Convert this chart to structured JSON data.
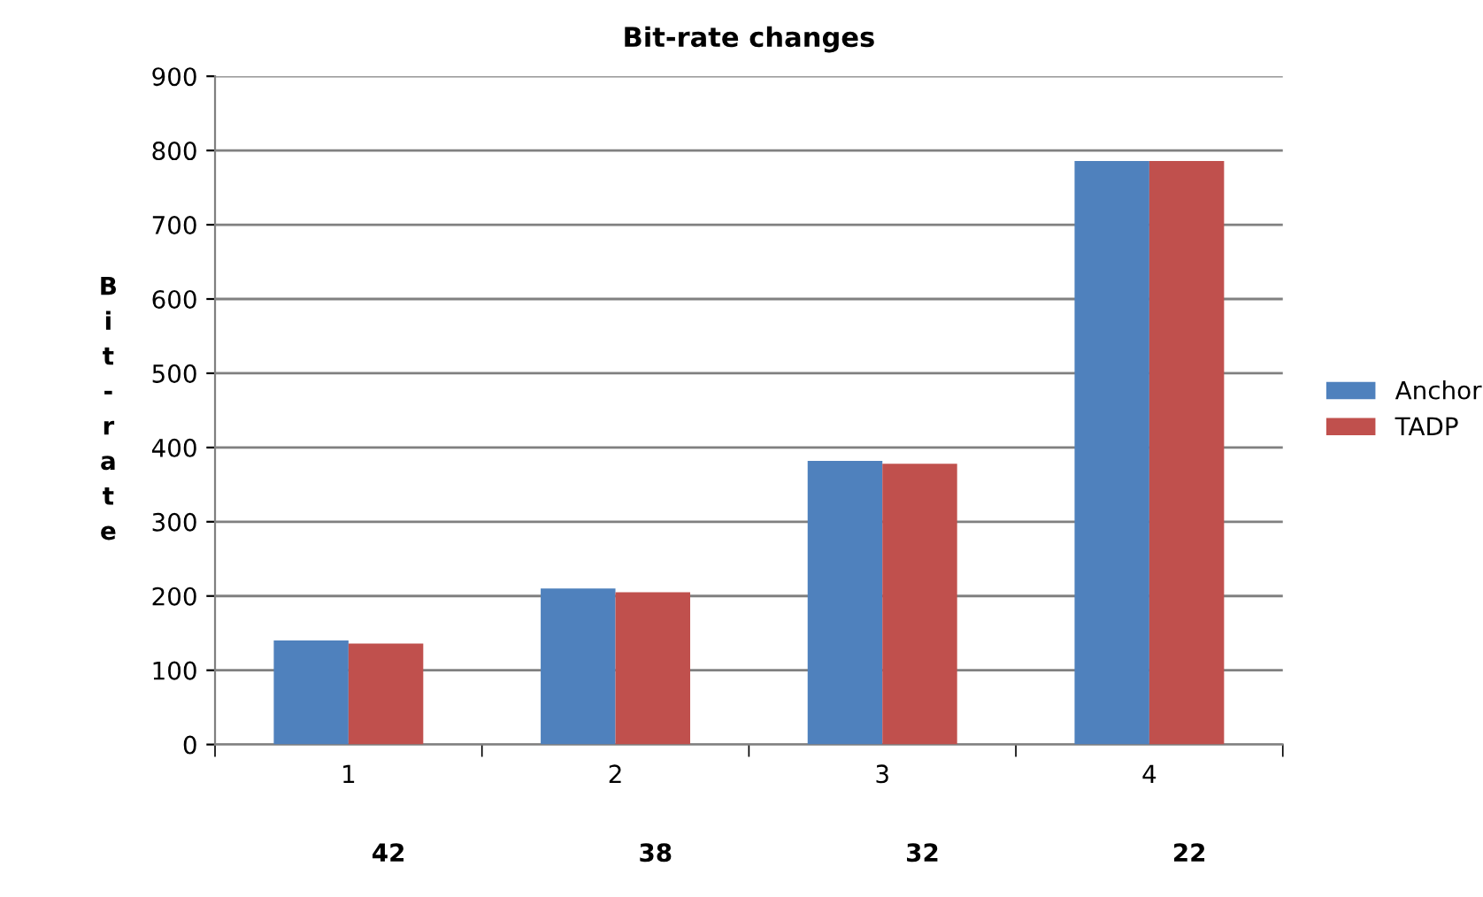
{
  "chart_data": {
    "type": "bar",
    "title": "Bit-rate changes",
    "ylabel": "Bit-rate",
    "categories": [
      "1",
      "2",
      "3",
      "4"
    ],
    "series": [
      {
        "name": "Anchor",
        "color": "#4f81bd",
        "values": [
          140,
          210,
          382,
          786
        ]
      },
      {
        "name": "TADP",
        "color": "#c0504d",
        "values": [
          136,
          205,
          378,
          786
        ]
      }
    ],
    "annotations": [
      "42",
      "38",
      "32",
      "22"
    ],
    "ylim": [
      0,
      900
    ],
    "yticks": [
      0,
      100,
      200,
      300,
      400,
      500,
      600,
      700,
      800,
      900
    ],
    "grid": "y",
    "legend": "right"
  }
}
